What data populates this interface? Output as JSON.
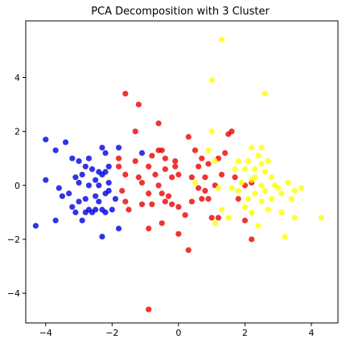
{
  "chart_data": {
    "type": "scatter",
    "title": "PCA Decomposition with 3 Cluster",
    "xlabel": "",
    "ylabel": "",
    "xlim": [
      -4.6,
      4.8
    ],
    "ylim": [
      -5.1,
      6.1
    ],
    "xticks": [
      -4,
      -2,
      0,
      2,
      4
    ],
    "yticks": [
      -4,
      -2,
      0,
      2,
      4
    ],
    "xtick_labels": [
      "−4",
      "−2",
      "0",
      "2",
      "4"
    ],
    "ytick_labels": [
      "−4",
      "−2",
      "0",
      "2",
      "4"
    ],
    "grid": false,
    "legend": "none",
    "series": [
      {
        "color": "#0000dd",
        "points": [
          [
            -4.3,
            -1.5
          ],
          [
            -4.0,
            1.7
          ],
          [
            -4.0,
            0.2
          ],
          [
            -3.7,
            1.3
          ],
          [
            -3.7,
            -1.3
          ],
          [
            -3.6,
            -0.1
          ],
          [
            -3.5,
            -0.4
          ],
          [
            -3.4,
            1.6
          ],
          [
            -3.3,
            -0.3
          ],
          [
            -3.2,
            1.0
          ],
          [
            -3.2,
            -0.8
          ],
          [
            -3.1,
            0.3
          ],
          [
            -3.1,
            -1.0
          ],
          [
            -3.0,
            0.9
          ],
          [
            -3.0,
            0.1
          ],
          [
            -3.0,
            -0.6
          ],
          [
            -2.9,
            0.4
          ],
          [
            -2.9,
            -1.3
          ],
          [
            -2.8,
            0.7
          ],
          [
            -2.8,
            -0.5
          ],
          [
            -2.8,
            -1.0
          ],
          [
            -2.7,
            1.0
          ],
          [
            -2.7,
            0.0
          ],
          [
            -2.7,
            -0.9
          ],
          [
            -2.6,
            0.6
          ],
          [
            -2.6,
            -1.0
          ],
          [
            -2.5,
            0.2
          ],
          [
            -2.5,
            -0.4
          ],
          [
            -2.5,
            -0.9
          ],
          [
            -2.4,
            0.5
          ],
          [
            -2.4,
            0.0
          ],
          [
            -2.4,
            -0.6
          ],
          [
            -2.3,
            1.4
          ],
          [
            -2.3,
            0.4
          ],
          [
            -2.3,
            -1.9
          ],
          [
            -2.3,
            -0.9
          ],
          [
            -2.2,
            1.2
          ],
          [
            -2.2,
            0.5
          ],
          [
            -2.2,
            -0.3
          ],
          [
            -2.2,
            -1.0
          ],
          [
            -2.1,
            0.7
          ],
          [
            -2.1,
            0.1
          ],
          [
            -2.1,
            -0.2
          ],
          [
            -2.0,
            -0.9
          ],
          [
            -1.9,
            -0.5
          ],
          [
            -1.8,
            1.4
          ],
          [
            -1.8,
            -1.6
          ],
          [
            -1.1,
            1.2
          ]
        ]
      },
      {
        "color": "#ee0000",
        "points": [
          [
            -1.8,
            1.0
          ],
          [
            -1.8,
            0.7
          ],
          [
            -1.7,
            -0.2
          ],
          [
            -1.6,
            3.4
          ],
          [
            -1.6,
            -0.6
          ],
          [
            -1.5,
            -0.9
          ],
          [
            -1.6,
            0.4
          ],
          [
            -1.3,
            2.0
          ],
          [
            -1.3,
            0.9
          ],
          [
            -1.2,
            3.0
          ],
          [
            -1.2,
            0.3
          ],
          [
            -1.1,
            0.1
          ],
          [
            -1.1,
            -0.7
          ],
          [
            -0.9,
            0.7
          ],
          [
            -0.9,
            -0.3
          ],
          [
            -0.9,
            -1.6
          ],
          [
            -0.9,
            -4.6
          ],
          [
            -0.8,
            1.1
          ],
          [
            -0.8,
            -0.7
          ],
          [
            -0.7,
            0.4
          ],
          [
            -0.6,
            2.3
          ],
          [
            -0.6,
            1.3
          ],
          [
            -0.6,
            0.0
          ],
          [
            -0.5,
            1.3
          ],
          [
            -0.5,
            -0.3
          ],
          [
            -0.5,
            -1.4
          ],
          [
            -0.4,
            1.0
          ],
          [
            -0.4,
            0.6
          ],
          [
            -0.4,
            -0.6
          ],
          [
            -0.3,
            -0.4
          ],
          [
            -0.2,
            0.3
          ],
          [
            -0.2,
            -0.7
          ],
          [
            -0.1,
            0.7
          ],
          [
            -0.1,
            0.9
          ],
          [
            0.0,
            0.4
          ],
          [
            0.0,
            -0.8
          ],
          [
            0.0,
            -1.8
          ],
          [
            0.2,
            -1.1
          ],
          [
            0.3,
            1.8
          ],
          [
            0.3,
            -2.4
          ],
          [
            0.4,
            0.3
          ],
          [
            0.4,
            -0.6
          ],
          [
            0.5,
            1.3
          ],
          [
            0.6,
            0.7
          ],
          [
            0.6,
            -0.1
          ],
          [
            0.7,
            1.0
          ],
          [
            0.7,
            -0.5
          ],
          [
            0.8,
            0.3
          ],
          [
            0.8,
            -0.2
          ],
          [
            0.9,
            0.8
          ],
          [
            0.9,
            -0.5
          ],
          [
            1.0,
            -1.2
          ],
          [
            1.1,
            0.0
          ],
          [
            1.2,
            1.0
          ],
          [
            1.2,
            -1.2
          ],
          [
            1.3,
            0.4
          ],
          [
            1.4,
            1.2
          ],
          [
            1.5,
            1.9
          ],
          [
            1.6,
            2.0
          ],
          [
            1.7,
            0.3
          ],
          [
            1.8,
            -0.5
          ],
          [
            2.0,
            -1.3
          ],
          [
            2.0,
            0.0
          ],
          [
            2.2,
            -2.0
          ],
          [
            2.2,
            0.1
          ]
        ]
      },
      {
        "color": "#ffff00",
        "points": [
          [
            1.3,
            5.4
          ],
          [
            1.0,
            3.9
          ],
          [
            1.0,
            2.0
          ],
          [
            0.9,
            1.3
          ],
          [
            1.1,
            0.9
          ],
          [
            0.5,
            0.1
          ],
          [
            1.2,
            -0.1
          ],
          [
            1.1,
            -1.4
          ],
          [
            1.3,
            -0.9
          ],
          [
            1.5,
            -1.2
          ],
          [
            1.6,
            -0.1
          ],
          [
            1.7,
            0.6
          ],
          [
            1.8,
            0.9
          ],
          [
            1.8,
            -0.2
          ],
          [
            1.9,
            0.1
          ],
          [
            2.0,
            0.6
          ],
          [
            2.0,
            -0.8
          ],
          [
            2.1,
            0.9
          ],
          [
            2.1,
            -0.5
          ],
          [
            2.2,
            1.4
          ],
          [
            2.2,
            0.2
          ],
          [
            2.2,
            -1.0
          ],
          [
            2.3,
            0.6
          ],
          [
            2.3,
            0.3
          ],
          [
            2.3,
            -0.3
          ],
          [
            2.4,
            1.1
          ],
          [
            2.4,
            -1.5
          ],
          [
            2.5,
            1.4
          ],
          [
            2.5,
            0.8
          ],
          [
            2.5,
            0.0
          ],
          [
            2.5,
            -0.6
          ],
          [
            2.6,
            3.4
          ],
          [
            2.6,
            0.5
          ],
          [
            2.6,
            -0.2
          ],
          [
            2.7,
            0.9
          ],
          [
            2.7,
            -0.9
          ],
          [
            2.8,
            0.3
          ],
          [
            2.8,
            -0.5
          ],
          [
            2.9,
            0.0
          ],
          [
            3.0,
            -0.1
          ],
          [
            3.1,
            -0.3
          ],
          [
            3.1,
            -1.0
          ],
          [
            3.2,
            -1.9
          ],
          [
            3.3,
            0.1
          ],
          [
            3.4,
            -0.5
          ],
          [
            3.5,
            -0.2
          ],
          [
            3.5,
            -1.2
          ],
          [
            3.7,
            -0.1
          ],
          [
            4.3,
            -1.2
          ]
        ]
      }
    ]
  }
}
